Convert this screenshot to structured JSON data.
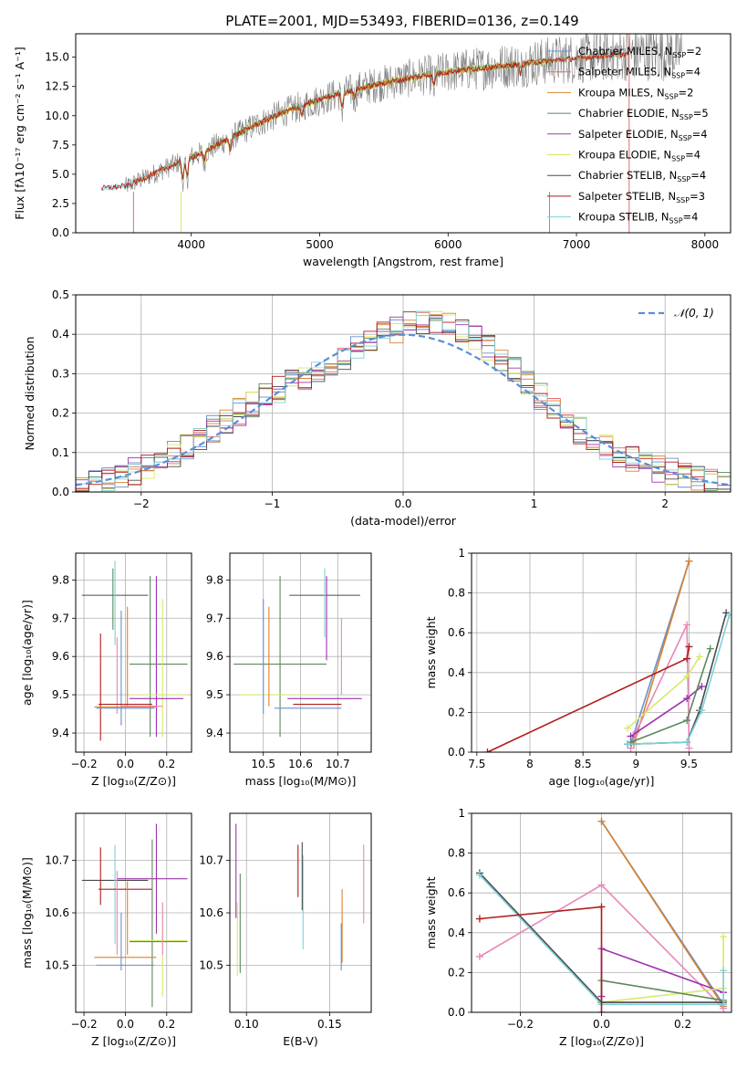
{
  "title": "PLATE=2001, MJD=53493, FIBERID=0136, z=0.149",
  "colors": {
    "Chabrier MILES": "#6a8fd0",
    "Salpeter MILES": "#e06c6c",
    "Kroupa MILES": "#d9822b",
    "Chabrier ELODIE": "#5b8a5b",
    "Salpeter ELODIE": "#a033b0",
    "Kroupa ELODIE": "#d7e86a",
    "Chabrier STELIB": "#4a4a4a",
    "Salpeter STELIB": "#b01c1c",
    "Kroupa STELIB": "#7fd0d8",
    "pink": "#e887b8",
    "data": "#808080",
    "normal": "#5b8ed8",
    "grid": "#b0b0b0"
  },
  "chart_data": [
    {
      "id": "spectrum",
      "type": "line",
      "xlabel": "wavelength [Angstrom, rest frame]",
      "ylabel": "Flux [fλ10⁻¹⁷ erg cm⁻² s⁻¹ A⁻¹]",
      "xlim": [
        3100,
        8200
      ],
      "ylim": [
        0,
        17
      ],
      "xticks": [
        4000,
        5000,
        6000,
        7000,
        8000
      ],
      "yticks": [
        0.0,
        2.5,
        5.0,
        7.5,
        10.0,
        12.5,
        15.0
      ],
      "grid": false,
      "legend_position": "top-right",
      "legend": [
        {
          "name": "Chabrier MILES",
          "n_ssp": "2"
        },
        {
          "name": "Salpeter MILES",
          "n_ssp": "4"
        },
        {
          "name": "Kroupa MILES",
          "n_ssp": "2"
        },
        {
          "name": "Chabrier ELODIE",
          "n_ssp": "5"
        },
        {
          "name": "Salpeter ELODIE",
          "n_ssp": "4"
        },
        {
          "name": "Kroupa ELODIE",
          "n_ssp": "4"
        },
        {
          "name": "Chabrier STELIB",
          "n_ssp": "4"
        },
        {
          "name": "Salpeter STELIB",
          "n_ssp": "3"
        },
        {
          "name": "Kroupa STELIB",
          "n_ssp": "4"
        }
      ],
      "continuum": {
        "x": [
          3300,
          3500,
          3700,
          3900,
          4100,
          4300,
          4500,
          4700,
          4900,
          5100,
          5300,
          5500,
          5800,
          6100,
          6400,
          6700,
          7000,
          7300,
          7600
        ],
        "y": [
          3.8,
          4.0,
          5.0,
          6.0,
          6.9,
          8.1,
          9.2,
          10.2,
          11.0,
          11.7,
          12.3,
          12.8,
          13.4,
          13.9,
          14.2,
          14.6,
          14.9,
          15.2,
          15.4
        ]
      },
      "stelib_range": [
        3300,
        7400
      ],
      "data_range": [
        3480,
        7820
      ],
      "mask_x": [
        3550,
        3920,
        6790,
        7410
      ]
    },
    {
      "id": "residuals",
      "type": "area",
      "xlabel": "(data-model)/error",
      "ylabel": "Normed distribution",
      "xlim": [
        -2.5,
        2.5
      ],
      "ylim": [
        0,
        0.5
      ],
      "xticks": [
        -2,
        -1,
        0,
        1,
        2
      ],
      "yticks": [
        0.0,
        0.1,
        0.2,
        0.3,
        0.4,
        0.5
      ],
      "grid": true,
      "legend_position": "top-right",
      "legend": [
        {
          "name": "𝒩(0, 1)"
        }
      ],
      "bins": 50,
      "normal": {
        "mu": 0,
        "sigma": 1
      }
    },
    {
      "id": "age-vs-z",
      "type": "scatter",
      "xlabel": "Z [log₁₀(Z/Z⊙)]",
      "ylabel": "age  [log₁₀(age/yr)]",
      "xlim": [
        -0.24,
        0.32
      ],
      "ylim": [
        9.35,
        9.87
      ],
      "xticks": [
        -0.2,
        0.0,
        0.2
      ],
      "yticks": [
        9.4,
        9.5,
        9.6,
        9.7,
        9.8
      ],
      "grid": true,
      "errorbars": [
        {
          "c": "Chabrier STELIB",
          "x": -0.05,
          "xe": 0.16,
          "y": 9.76,
          "ye": 0.0
        },
        {
          "c": "Kroupa STELIB",
          "x": -0.05,
          "xe": 0.0,
          "y": 9.74,
          "ye": 0.11
        },
        {
          "c": "Chabrier ELODIE",
          "x": -0.06,
          "xe": 0.0,
          "y": 9.75,
          "ye": 0.08
        },
        {
          "c": "Chabrier ELODIE",
          "x": 0.12,
          "xe": 0.0,
          "y": 9.6,
          "ye": 0.21
        },
        {
          "c": "Salpeter ELODIE",
          "x": 0.15,
          "xe": 0.0,
          "y": 9.6,
          "ye": 0.21
        },
        {
          "c": "Chabrier ELODIE",
          "x": 0.16,
          "xe": 0.14,
          "y": 9.58,
          "ye": 0.0
        },
        {
          "c": "Kroupa ELODIE",
          "x": 0.16,
          "xe": 0.14,
          "y": 9.5,
          "ye": 0.0
        },
        {
          "c": "Kroupa ELODIE",
          "x": 0.18,
          "xe": 0.0,
          "y": 9.57,
          "ye": 0.18
        },
        {
          "c": "Kroupa MILES",
          "x": 0.01,
          "xe": 0.0,
          "y": 9.6,
          "ye": 0.13
        },
        {
          "c": "Chabrier MILES",
          "x": -0.02,
          "xe": 0.0,
          "y": 9.57,
          "ye": 0.15
        },
        {
          "c": "pink",
          "x": -0.04,
          "xe": 0.0,
          "y": 9.55,
          "ye": 0.1
        },
        {
          "c": "Salpeter STELIB",
          "x": -0.12,
          "xe": 0.0,
          "y": 9.52,
          "ye": 0.14
        },
        {
          "c": "Salpeter STELIB",
          "x": 0.0,
          "xe": 0.13,
          "y": 9.475,
          "ye": 0.0
        },
        {
          "c": "Kroupa MILES",
          "x": 0.0,
          "xe": 0.15,
          "y": 9.468,
          "ye": 0.0
        },
        {
          "c": "Chabrier MILES",
          "x": 0.0,
          "xe": 0.14,
          "y": 9.465,
          "ye": 0.0
        },
        {
          "c": "pink",
          "x": 0.08,
          "xe": 0.1,
          "y": 9.47,
          "ye": 0.0
        },
        {
          "c": "Salpeter ELODIE",
          "x": 0.15,
          "xe": 0.13,
          "y": 9.49,
          "ye": 0.0
        }
      ]
    },
    {
      "id": "age-vs-mass",
      "type": "scatter",
      "xlabel": "mass [log₁₀(M/M⊙)]",
      "ylabel": "",
      "xlim": [
        10.41,
        10.79
      ],
      "ylim": [
        9.35,
        9.87
      ],
      "xticks": [
        10.5,
        10.6,
        10.7
      ],
      "yticks": [
        9.4,
        9.5,
        9.6,
        9.7,
        9.8
      ],
      "grid": true,
      "errorbars": [
        {
          "c": "Chabrier STELIB",
          "x": 10.665,
          "xe": 0.095,
          "y": 9.76,
          "ye": 0.0
        },
        {
          "c": "Kroupa STELIB",
          "x": 10.665,
          "xe": 0.0,
          "y": 9.74,
          "ye": 0.09
        },
        {
          "c": "Chabrier ELODIE",
          "x": 10.545,
          "xe": 0.0,
          "y": 9.6,
          "ye": 0.21
        },
        {
          "c": "Chabrier ELODIE",
          "x": 10.545,
          "xe": 0.125,
          "y": 9.58,
          "ye": 0.0
        },
        {
          "c": "Kroupa ELODIE",
          "x": 10.545,
          "xe": 0.11,
          "y": 9.5,
          "ye": 0.0
        },
        {
          "c": "Chabrier MILES",
          "x": 10.5,
          "xe": 0.0,
          "y": 9.6,
          "ye": 0.15
        },
        {
          "c": "Kroupa MILES",
          "x": 10.515,
          "xe": 0.0,
          "y": 9.6,
          "ye": 0.13
        },
        {
          "c": "Salpeter STELIB",
          "x": 10.645,
          "xe": 0.065,
          "y": 9.475,
          "ye": 0.0
        },
        {
          "c": "Chabrier MILES",
          "x": 10.62,
          "xe": 0.09,
          "y": 9.465,
          "ye": 0.0
        },
        {
          "c": "Salpeter ELODIE",
          "x": 10.665,
          "xe": 0.1,
          "y": 9.49,
          "ye": 0.0
        },
        {
          "c": "pink",
          "x": 10.71,
          "xe": 0.0,
          "y": 9.6,
          "ye": 0.1
        },
        {
          "c": "Salpeter ELODIE",
          "x": 10.67,
          "xe": 0.0,
          "y": 9.7,
          "ye": 0.11
        }
      ]
    },
    {
      "id": "massweight-vs-age",
      "type": "line",
      "xlabel": "age  [log₁₀(age/yr)]",
      "ylabel": "mass weight",
      "xlim": [
        7.45,
        9.9
      ],
      "ylim": [
        0,
        1.0
      ],
      "xticks": [
        7.5,
        8.0,
        8.5,
        9.0,
        9.5
      ],
      "yticks": [
        0.0,
        0.2,
        0.4,
        0.6,
        0.8,
        1.0
      ],
      "grid": true,
      "series": [
        {
          "c": "Chabrier MILES",
          "x": [
            8.95,
            9.5
          ],
          "y": [
            0.04,
            0.96
          ]
        },
        {
          "c": "Kroupa MILES",
          "x": [
            8.98,
            9.5
          ],
          "y": [
            0.04,
            0.96
          ]
        },
        {
          "c": "pink",
          "x": [
            8.95,
            9.0,
            9.48,
            9.5
          ],
          "y": [
            0.02,
            0.1,
            0.64,
            0.02
          ]
        },
        {
          "c": "Salpeter ELODIE",
          "x": [
            8.95,
            9.48,
            9.62
          ],
          "y": [
            0.08,
            0.27,
            0.33
          ]
        },
        {
          "c": "Kroupa ELODIE",
          "x": [
            8.92,
            9.48,
            9.6
          ],
          "y": [
            0.12,
            0.38,
            0.48
          ]
        },
        {
          "c": "Chabrier ELODIE",
          "x": [
            8.95,
            9.48,
            9.7
          ],
          "y": [
            0.05,
            0.16,
            0.52
          ]
        },
        {
          "c": "Chabrier STELIB",
          "x": [
            8.92,
            9.48,
            9.6,
            9.85
          ],
          "y": [
            0.04,
            0.05,
            0.21,
            0.7
          ]
        },
        {
          "c": "Kroupa STELIB",
          "x": [
            8.92,
            9.48,
            9.62,
            9.88
          ],
          "y": [
            0.04,
            0.05,
            0.21,
            0.69
          ]
        },
        {
          "c": "Salpeter STELIB",
          "x": [
            7.6,
            9.48,
            9.5
          ],
          "y": [
            0.0,
            0.47,
            0.53
          ]
        }
      ]
    },
    {
      "id": "mass-vs-z",
      "type": "scatter",
      "xlabel": "Z [log₁₀(Z/Z⊙)]",
      "ylabel": "mass [log₁₀(M/M⊙)]",
      "xlim": [
        -0.24,
        0.32
      ],
      "ylim": [
        10.41,
        10.79
      ],
      "xticks": [
        -0.2,
        0.0,
        0.2
      ],
      "yticks": [
        10.5,
        10.6,
        10.7
      ],
      "grid": true,
      "errorbars": [
        {
          "c": "Chabrier STELIB",
          "x": -0.05,
          "xe": 0.16,
          "y": 10.662,
          "ye": 0.0
        },
        {
          "c": "Kroupa STELIB",
          "x": -0.05,
          "xe": 0.0,
          "y": 10.635,
          "ye": 0.095
        },
        {
          "c": "Salpeter ELODIE",
          "x": 0.13,
          "xe": 0.17,
          "y": 10.665,
          "ye": 0.0
        },
        {
          "c": "Salpeter ELODIE",
          "x": 0.15,
          "xe": 0.0,
          "y": 10.665,
          "ye": 0.105
        },
        {
          "c": "Salpeter STELIB",
          "x": -0.12,
          "xe": 0.0,
          "y": 10.67,
          "ye": 0.055
        },
        {
          "c": "Salpeter STELIB",
          "x": 0.0,
          "xe": 0.13,
          "y": 10.645,
          "ye": 0.0
        },
        {
          "c": "Chabrier ELODIE",
          "x": 0.13,
          "xe": 0.0,
          "y": 10.58,
          "ye": 0.16
        },
        {
          "c": "Chabrier ELODIE",
          "x": 0.16,
          "xe": 0.14,
          "y": 10.545,
          "ye": 0.0
        },
        {
          "c": "Kroupa ELODIE",
          "x": 0.16,
          "xe": 0.14,
          "y": 10.547,
          "ye": 0.0
        },
        {
          "c": "Kroupa ELODIE",
          "x": 0.18,
          "xe": 0.0,
          "y": 10.53,
          "ye": 0.09
        },
        {
          "c": "Kroupa MILES",
          "x": 0.0,
          "xe": 0.15,
          "y": 10.515,
          "ye": 0.0
        },
        {
          "c": "Chabrier MILES",
          "x": 0.0,
          "xe": 0.14,
          "y": 10.5,
          "ye": 0.0
        },
        {
          "c": "Kroupa MILES",
          "x": 0.01,
          "xe": 0.0,
          "y": 10.59,
          "ye": 0.07
        },
        {
          "c": "Chabrier MILES",
          "x": -0.02,
          "xe": 0.0,
          "y": 10.545,
          "ye": 0.055
        },
        {
          "c": "pink",
          "x": -0.04,
          "xe": 0.0,
          "y": 10.6,
          "ye": 0.08
        },
        {
          "c": "pink",
          "x": 0.18,
          "xe": 0.0,
          "y": 10.57,
          "ye": 0.05
        }
      ]
    },
    {
      "id": "mass-vs-ebv",
      "type": "scatter",
      "xlabel": "E(B-V)",
      "ylabel": "",
      "xlim": [
        0.09,
        0.175
      ],
      "ylim": [
        10.41,
        10.79
      ],
      "xticks": [
        0.1,
        0.15
      ],
      "yticks": [
        10.5,
        10.6,
        10.7
      ],
      "grid": true,
      "errorbars": [
        {
          "c": "Salpeter ELODIE",
          "x": 0.0937,
          "xe": 0.0,
          "y": 10.68,
          "ye": 0.09
        },
        {
          "c": "Kroupa ELODIE",
          "x": 0.0945,
          "xe": 0.0,
          "y": 10.55,
          "ye": 0.07
        },
        {
          "c": "Chabrier ELODIE",
          "x": 0.0962,
          "xe": 0.0,
          "y": 10.58,
          "ye": 0.095
        },
        {
          "c": "Salpeter STELIB",
          "x": 0.131,
          "xe": 0.0,
          "y": 10.68,
          "ye": 0.05
        },
        {
          "c": "Kroupa STELIB",
          "x": 0.134,
          "xe": 0.0,
          "y": 10.62,
          "ye": 0.09
        },
        {
          "c": "Chabrier STELIB",
          "x": 0.1335,
          "xe": 0.0,
          "y": 10.67,
          "ye": 0.065
        },
        {
          "c": "Chabrier MILES",
          "x": 0.157,
          "xe": 0.0,
          "y": 10.535,
          "ye": 0.045
        },
        {
          "c": "Kroupa MILES",
          "x": 0.1575,
          "xe": 0.0,
          "y": 10.575,
          "ye": 0.07
        },
        {
          "c": "pink",
          "x": 0.1705,
          "xe": 0.0,
          "y": 10.655,
          "ye": 0.075
        }
      ]
    },
    {
      "id": "massweight-vs-z",
      "type": "line",
      "xlabel": "Z [log₁₀(Z/Z⊙)]",
      "ylabel": "mass weight",
      "xlim": [
        -0.32,
        0.32
      ],
      "ylim": [
        0,
        1.0
      ],
      "xticks": [
        -0.2,
        0.0,
        0.2
      ],
      "yticks": [
        0.0,
        0.2,
        0.4,
        0.6,
        0.8,
        1.0
      ],
      "grid": true,
      "series": [
        {
          "c": "Chabrier MILES",
          "x": [
            0.0,
            0.3
          ],
          "y": [
            0.96,
            0.04
          ]
        },
        {
          "c": "Kroupa MILES",
          "x": [
            0.0,
            0.3
          ],
          "y": [
            0.96,
            0.03
          ]
        },
        {
          "c": "pink",
          "x": [
            -0.3,
            0.0,
            0.3
          ],
          "y": [
            0.28,
            0.64,
            0.02
          ]
        },
        {
          "c": "Salpeter ELODIE",
          "x": [
            0.0,
            0.0,
            0.3
          ],
          "y": [
            0.08,
            0.32,
            0.1
          ]
        },
        {
          "c": "Kroupa ELODIE",
          "x": [
            0.0,
            0.3,
            0.3
          ],
          "y": [
            0.05,
            0.12,
            0.38
          ]
        },
        {
          "c": "Chabrier ELODIE",
          "x": [
            0.0,
            0.0,
            0.3
          ],
          "y": [
            0.05,
            0.16,
            0.06
          ]
        },
        {
          "c": "Chabrier STELIB",
          "x": [
            -0.3,
            0.0,
            0.3
          ],
          "y": [
            0.7,
            0.05,
            0.05
          ]
        },
        {
          "c": "Kroupa STELIB",
          "x": [
            -0.3,
            0.0,
            0.3,
            0.3
          ],
          "y": [
            0.69,
            0.04,
            0.04,
            0.21
          ]
        },
        {
          "c": "Salpeter STELIB",
          "x": [
            -0.3,
            0.0,
            0.0
          ],
          "y": [
            0.47,
            0.53,
            0.0
          ]
        }
      ]
    }
  ]
}
